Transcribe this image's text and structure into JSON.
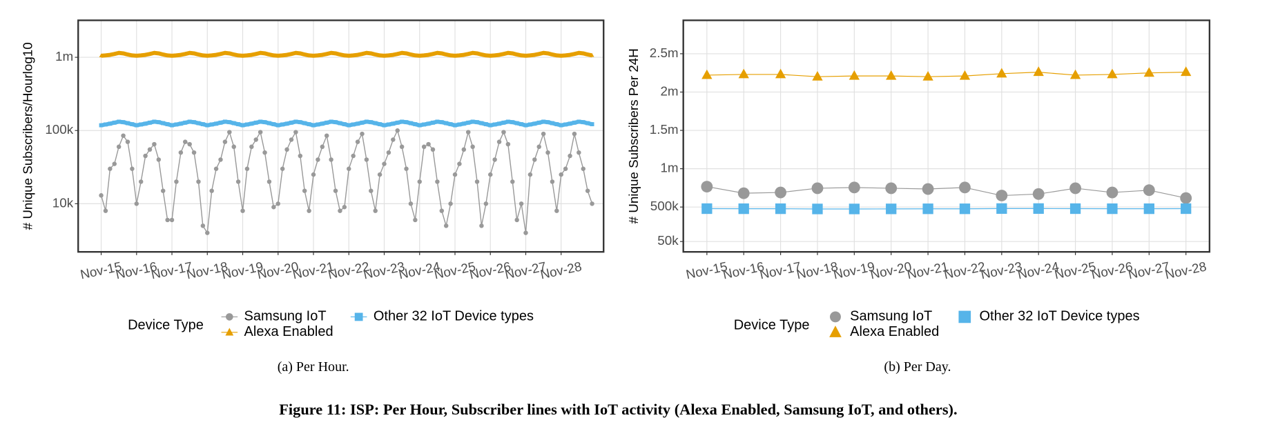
{
  "chart_data": [
    {
      "type": "line",
      "log_scale": true,
      "grid": true,
      "y_label": "# Unique Subscribers/Hourlog10",
      "caption": "(a)  Per Hour.",
      "legend_title": "Device Type",
      "xlim": [
        -0.65,
        14.2
      ],
      "xticks": [
        {
          "value": 0,
          "label": "Nov-15"
        },
        {
          "value": 1,
          "label": "Nov-16"
        },
        {
          "value": 2,
          "label": "Nov-17"
        },
        {
          "value": 3,
          "label": "Nov-18"
        },
        {
          "value": 4,
          "label": "Nov-19"
        },
        {
          "value": 5,
          "label": "Nov-20"
        },
        {
          "value": 6,
          "label": "Nov-21"
        },
        {
          "value": 7,
          "label": "Nov-22"
        },
        {
          "value": 8,
          "label": "Nov-23"
        },
        {
          "value": 9,
          "label": "Nov-24"
        },
        {
          "value": 10,
          "label": "Nov-25"
        },
        {
          "value": 11,
          "label": "Nov-26"
        },
        {
          "value": 12,
          "label": "Nov-27"
        },
        {
          "value": 13,
          "label": "Nov-28"
        }
      ],
      "ylim": [
        2200,
        3200000
      ],
      "yticks": [
        {
          "value": 10000,
          "label": "10k"
        },
        {
          "value": 100000,
          "label": "100k"
        },
        {
          "value": 1000000,
          "label": "1m"
        }
      ],
      "x": [
        0,
        0.125,
        0.25,
        0.375,
        0.5,
        0.625,
        0.75,
        0.875,
        1,
        1.125,
        1.25,
        1.375,
        1.5,
        1.625,
        1.75,
        1.875,
        2,
        2.125,
        2.25,
        2.375,
        2.5,
        2.625,
        2.75,
        2.875,
        3,
        3.125,
        3.25,
        3.375,
        3.5,
        3.625,
        3.75,
        3.875,
        4,
        4.125,
        4.25,
        4.375,
        4.5,
        4.625,
        4.75,
        4.875,
        5,
        5.125,
        5.25,
        5.375,
        5.5,
        5.625,
        5.75,
        5.875,
        6,
        6.125,
        6.25,
        6.375,
        6.5,
        6.625,
        6.75,
        6.875,
        7,
        7.125,
        7.25,
        7.375,
        7.5,
        7.625,
        7.75,
        7.875,
        8,
        8.125,
        8.25,
        8.375,
        8.5,
        8.625,
        8.75,
        8.875,
        9,
        9.125,
        9.25,
        9.375,
        9.5,
        9.625,
        9.75,
        9.875,
        10,
        10.125,
        10.25,
        10.375,
        10.5,
        10.625,
        10.75,
        10.875,
        11,
        11.125,
        11.25,
        11.375,
        11.5,
        11.625,
        11.75,
        11.875,
        12,
        12.125,
        12.25,
        12.375,
        12.5,
        12.625,
        12.75,
        12.875,
        13,
        13.125,
        13.25,
        13.375,
        13.5,
        13.625,
        13.75,
        13.875
      ],
      "series": [
        {
          "name": "Samsung IoT",
          "color": "#999999",
          "marker": "circle",
          "values": [
            13000,
            8000,
            30000,
            35000,
            60000,
            85000,
            70000,
            30000,
            10000,
            20000,
            45000,
            55000,
            65000,
            40000,
            15000,
            6000,
            6000,
            20000,
            50000,
            70000,
            65000,
            50000,
            20000,
            5000,
            4000,
            15000,
            30000,
            40000,
            70000,
            95000,
            60000,
            20000,
            8000,
            30000,
            60000,
            75000,
            95000,
            50000,
            20000,
            9000,
            10000,
            30000,
            55000,
            75000,
            95000,
            45000,
            15000,
            8000,
            25000,
            40000,
            60000,
            85000,
            40000,
            15000,
            8000,
            9000,
            30000,
            45000,
            70000,
            90000,
            40000,
            15000,
            8000,
            25000,
            35000,
            50000,
            75000,
            100000,
            60000,
            30000,
            10000,
            6000,
            20000,
            60000,
            65000,
            55000,
            20000,
            8000,
            5000,
            10000,
            25000,
            35000,
            55000,
            95000,
            60000,
            20000,
            5000,
            10000,
            25000,
            40000,
            70000,
            95000,
            65000,
            20000,
            6000,
            10000,
            4000,
            25000,
            40000,
            60000,
            90000,
            50000,
            20000,
            8000,
            25000,
            30000,
            45000,
            90000,
            50000,
            30000,
            15000,
            10000
          ]
        },
        {
          "name": "Alexa Enabled",
          "color": "#E69F00",
          "marker": "triangle",
          "values": [
            1050000,
            1060000,
            1080000,
            1110000,
            1150000,
            1130000,
            1090000,
            1060000,
            1050000,
            1060000,
            1080000,
            1110000,
            1150000,
            1130000,
            1090000,
            1060000,
            1050000,
            1060000,
            1080000,
            1110000,
            1150000,
            1130000,
            1090000,
            1060000,
            1050000,
            1060000,
            1080000,
            1110000,
            1150000,
            1130000,
            1090000,
            1060000,
            1050000,
            1060000,
            1080000,
            1110000,
            1150000,
            1130000,
            1090000,
            1060000,
            1050000,
            1060000,
            1080000,
            1110000,
            1150000,
            1130000,
            1090000,
            1060000,
            1050000,
            1060000,
            1080000,
            1110000,
            1150000,
            1130000,
            1090000,
            1060000,
            1050000,
            1060000,
            1080000,
            1110000,
            1150000,
            1130000,
            1090000,
            1060000,
            1050000,
            1060000,
            1080000,
            1110000,
            1150000,
            1130000,
            1090000,
            1060000,
            1050000,
            1060000,
            1080000,
            1110000,
            1150000,
            1130000,
            1090000,
            1060000,
            1050000,
            1060000,
            1080000,
            1110000,
            1150000,
            1130000,
            1090000,
            1060000,
            1050000,
            1060000,
            1080000,
            1110000,
            1150000,
            1130000,
            1090000,
            1060000,
            1050000,
            1060000,
            1080000,
            1110000,
            1150000,
            1130000,
            1090000,
            1060000,
            1050000,
            1060000,
            1080000,
            1110000,
            1150000,
            1130000,
            1090000,
            1060000
          ]
        },
        {
          "name": "Other 32 IoT Device types",
          "color": "#56B4E9",
          "marker": "square",
          "values": [
            118000,
            121000,
            124000,
            128000,
            132000,
            130000,
            126000,
            122000,
            118000,
            121000,
            124000,
            128000,
            132000,
            130000,
            126000,
            122000,
            118000,
            121000,
            124000,
            128000,
            132000,
            130000,
            126000,
            122000,
            118000,
            121000,
            124000,
            128000,
            132000,
            130000,
            126000,
            122000,
            118000,
            121000,
            124000,
            128000,
            132000,
            130000,
            126000,
            122000,
            118000,
            121000,
            124000,
            128000,
            132000,
            130000,
            126000,
            122000,
            118000,
            121000,
            124000,
            128000,
            132000,
            130000,
            126000,
            122000,
            118000,
            121000,
            124000,
            128000,
            132000,
            130000,
            126000,
            122000,
            118000,
            121000,
            124000,
            128000,
            132000,
            130000,
            126000,
            122000,
            118000,
            121000,
            124000,
            128000,
            132000,
            130000,
            126000,
            122000,
            118000,
            121000,
            124000,
            128000,
            132000,
            130000,
            126000,
            122000,
            118000,
            121000,
            124000,
            128000,
            132000,
            130000,
            126000,
            122000,
            118000,
            121000,
            124000,
            128000,
            132000,
            130000,
            126000,
            122000,
            118000,
            121000,
            124000,
            128000,
            132000,
            130000,
            126000,
            122000
          ]
        }
      ]
    },
    {
      "type": "line",
      "log_scale": false,
      "grid": true,
      "y_label": "# Unique Subscribers Per 24H",
      "caption": "(b)  Per Day.",
      "legend_title": "Device Type",
      "categories": [
        "Nov-15",
        "Nov-16",
        "Nov-17",
        "Nov-18",
        "Nov-19",
        "Nov-20",
        "Nov-21",
        "Nov-22",
        "Nov-23",
        "Nov-24",
        "Nov-25",
        "Nov-26",
        "Nov-27",
        "Nov-28"
      ],
      "ylim": [
        -85000,
        2936000
      ],
      "yticks": [
        {
          "value": 50000,
          "label": "50k"
        },
        {
          "value": 500000,
          "label": "500k"
        },
        {
          "value": 1000000,
          "label": "1m"
        },
        {
          "value": 1500000,
          "label": "1.5m"
        },
        {
          "value": 2000000,
          "label": "2m"
        },
        {
          "value": 2500000,
          "label": "2.5m"
        }
      ],
      "series": [
        {
          "name": "Samsung IoT",
          "color": "#999999",
          "marker": "circle",
          "values": [
            766000,
            680000,
            690000,
            745000,
            755000,
            745000,
            735000,
            755000,
            650000,
            670000,
            745000,
            690000,
            720000,
            617000
          ]
        },
        {
          "name": "Alexa Enabled",
          "color": "#E69F00",
          "marker": "triangle",
          "values": [
            2220000,
            2230000,
            2230000,
            2200000,
            2210000,
            2210000,
            2200000,
            2210000,
            2240000,
            2260000,
            2220000,
            2230000,
            2250000,
            2260000
          ]
        },
        {
          "name": "Other 32 IoT Device types",
          "color": "#56B4E9",
          "marker": "square",
          "values": [
            479000,
            478000,
            478000,
            475000,
            475000,
            476000,
            477000,
            477000,
            480000,
            480000,
            479000,
            478000,
            478000,
            479000
          ]
        }
      ]
    }
  ],
  "figure_caption": "Figure 11: ISP: Per Hour, Subscriber lines with IoT activity (Alexa Enabled, Samsung IoT, and others)."
}
